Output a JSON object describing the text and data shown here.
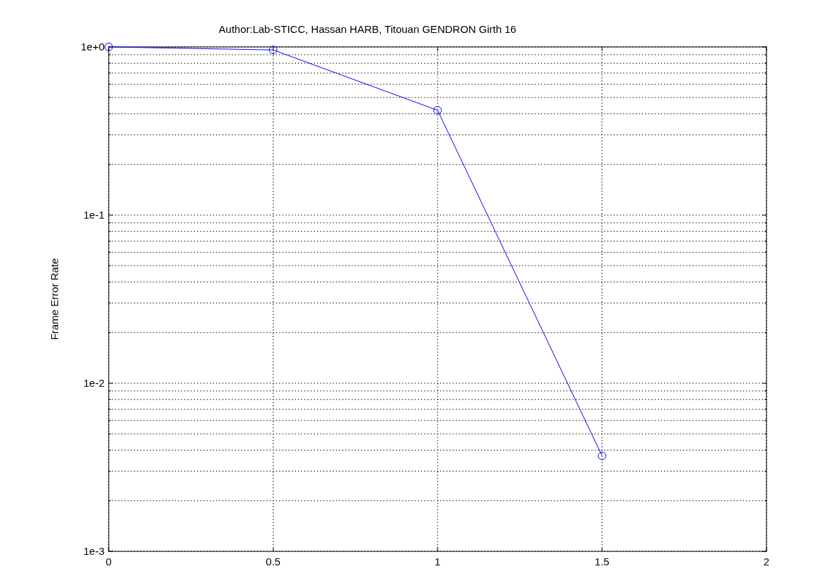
{
  "chart_data": {
    "type": "line",
    "title": "Author:Lab-STICC, Hassan HARB, Titouan GENDRON Girth 16",
    "ylabel": "Frame Error Rate",
    "x": [
      0,
      0.5,
      1,
      1.5
    ],
    "series": [
      {
        "color": "#0000ff",
        "values": [
          1.0,
          0.96,
          0.42,
          0.0037
        ]
      }
    ],
    "xlim": [
      0,
      2
    ],
    "xticks": [
      0,
      0.5,
      1,
      1.5,
      2
    ],
    "ylim": [
      0.001,
      1
    ],
    "yticks": [
      {
        "value": 0.001,
        "label": "1e-3"
      },
      {
        "value": 0.002,
        "label": null
      },
      {
        "value": 0.003,
        "label": null
      },
      {
        "value": 0.004,
        "label": null
      },
      {
        "value": 0.005,
        "label": null
      },
      {
        "value": 0.006,
        "label": null
      },
      {
        "value": 0.007,
        "label": null
      },
      {
        "value": 0.008,
        "label": null
      },
      {
        "value": 0.009,
        "label": null
      },
      {
        "value": 0.01,
        "label": "1e-2"
      },
      {
        "value": 0.02,
        "label": null
      },
      {
        "value": 0.03,
        "label": null
      },
      {
        "value": 0.04,
        "label": null
      },
      {
        "value": 0.05,
        "label": null
      },
      {
        "value": 0.06,
        "label": null
      },
      {
        "value": 0.07,
        "label": null
      },
      {
        "value": 0.08,
        "label": null
      },
      {
        "value": 0.09,
        "label": null
      },
      {
        "value": 0.1,
        "label": "1e-1"
      },
      {
        "value": 0.2,
        "label": null
      },
      {
        "value": 0.3,
        "label": null
      },
      {
        "value": 0.4,
        "label": null
      },
      {
        "value": 0.5,
        "label": null
      },
      {
        "value": 0.6,
        "label": null
      },
      {
        "value": 0.7,
        "label": null
      },
      {
        "value": 0.8,
        "label": null
      },
      {
        "value": 0.9,
        "label": null
      },
      {
        "value": 1,
        "label": "1e+0"
      }
    ],
    "log": "y",
    "grid": true,
    "marker": "circle",
    "line_style": "solid"
  }
}
